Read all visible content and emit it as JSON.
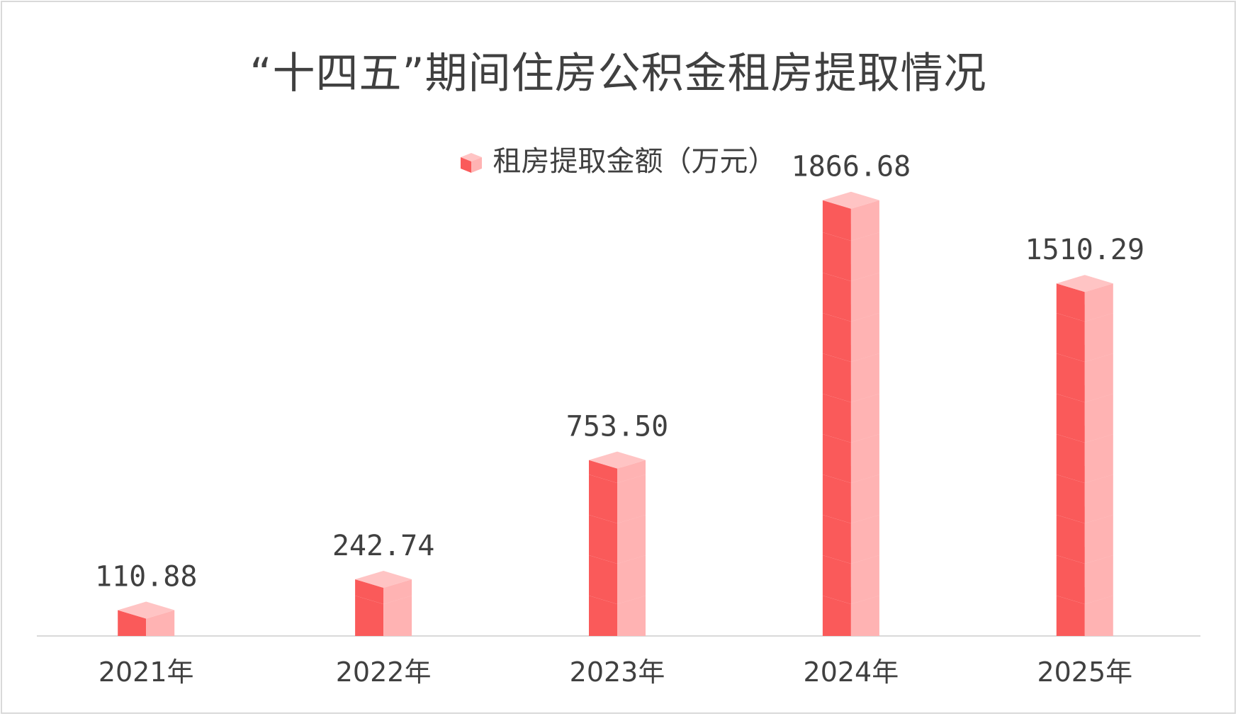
{
  "chart_data": {
    "type": "bar",
    "title": "“十四五”期间住房公积金租房提取情况",
    "categories": [
      "2021年",
      "2022年",
      "2023年",
      "2024年",
      "2025年"
    ],
    "series": [
      {
        "name": "租房提取金额（万元）",
        "values": [
          110.88,
          242.74,
          753.5,
          1866.68,
          1510.29
        ],
        "value_labels": [
          "110.88",
          "242.74",
          "753.50",
          "1866.68",
          "1510.29"
        ]
      }
    ],
    "ylim": [
      0,
      2100
    ],
    "grid": false,
    "legend": "top-center",
    "bar_style": "stacked-cubes",
    "colors": {
      "front": "#fa5a5a",
      "side": "#ffb3b3",
      "top": "#ffc4c4",
      "axis": "#d9d9d9",
      "text": "#404040"
    }
  }
}
